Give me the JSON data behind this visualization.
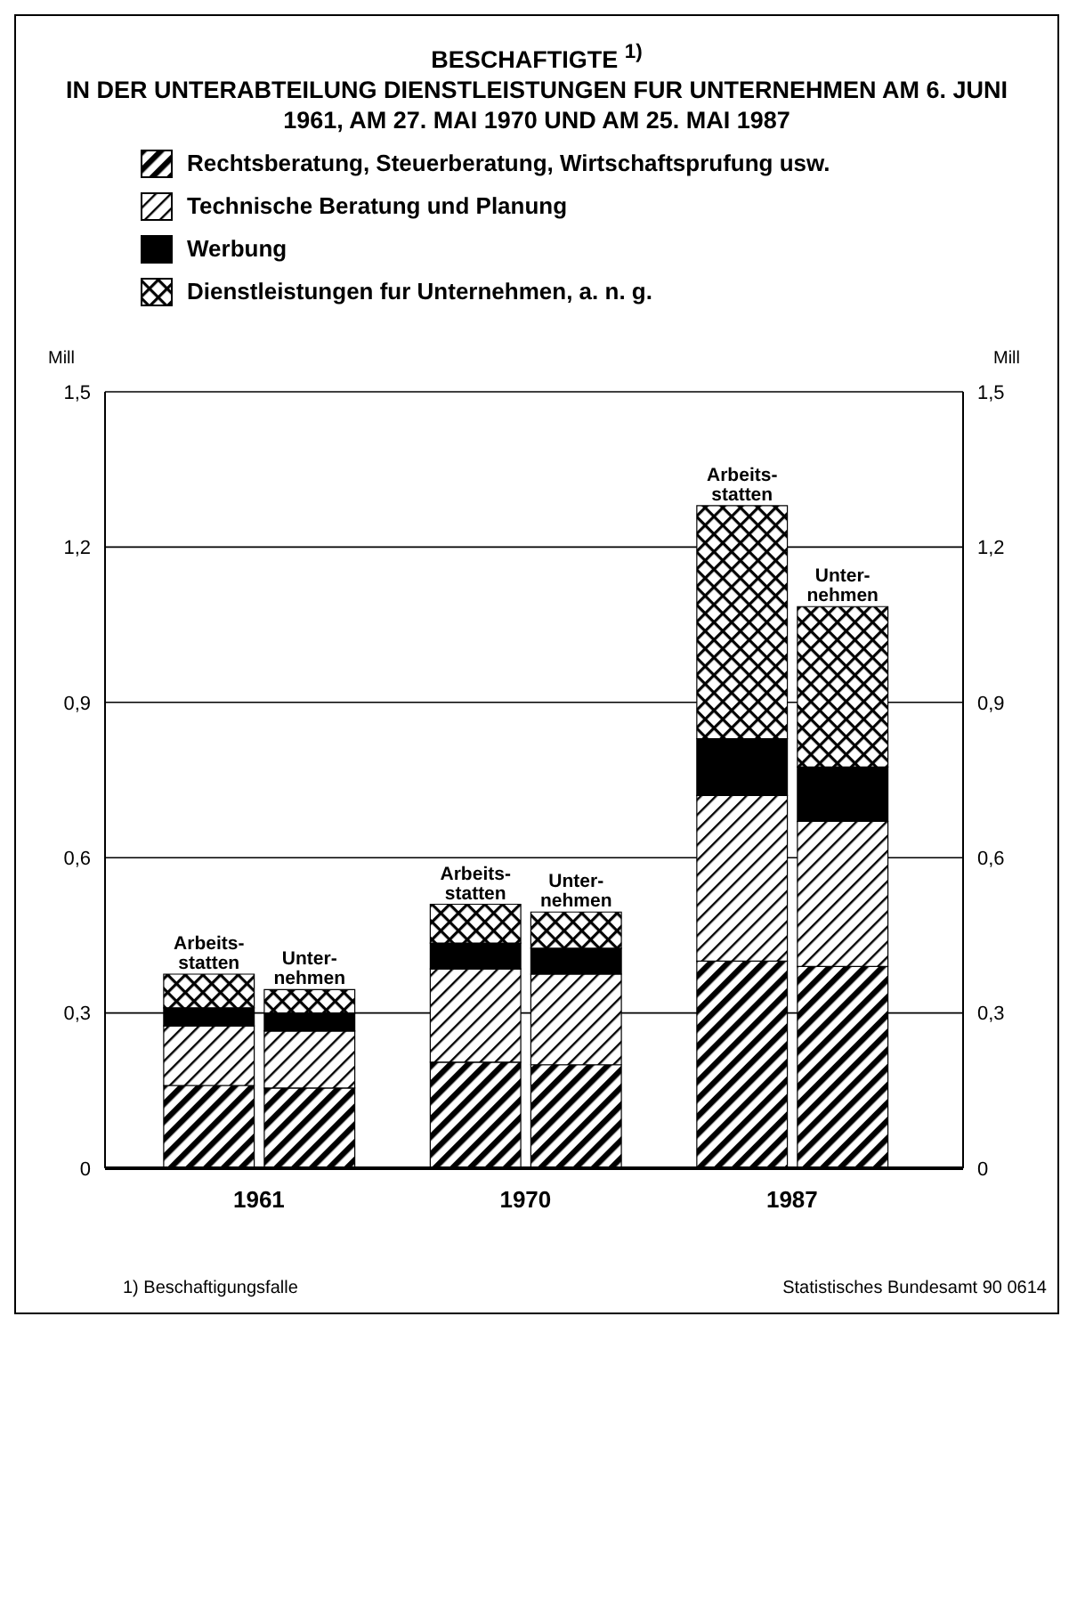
{
  "chart_data": {
    "type": "bar",
    "stacked": true,
    "title": "BESCHAFTIGTE $^{1)}$",
    "subtitle": "IN DER UNTERABTEILUNG DIENSTLEISTUNGEN FUR UNTERNEHMEN AM 6. JUNI 1961, AM 27. MAI 1970 UND AM 25. MAI 1987",
    "ylabel": "Mill",
    "y2label": "Mill",
    "categories": [
      "Arbeits-statten",
      "Unter-nehmen",
      "Arbeits-statten",
      "Unter-nehmen",
      "Arbeits-statten",
      "Unter-nehmen"
    ],
    "series": [
      {
        "name": "Rechtsberatung, Steuerberatung, Wirtschaftsprufung usw.",
        "color": "#000000",
        "values": [
          0.16,
          0.155,
          0.205,
          0.2,
          0.4,
          0.39
        ]
      },
      {
        "name": "Technische Beratung und Planung",
        "color": "#000000",
        "values": [
          0.115,
          0.11,
          0.18,
          0.175,
          0.32,
          0.28
        ]
      },
      {
        "name": "Werbung",
        "color": "#000000",
        "values": [
          0.035,
          0.035,
          0.05,
          0.05,
          0.11,
          0.105
        ]
      },
      {
        "name": "Dienstleistungen fur Unternehmen, a. n. g.",
        "color": "#000000",
        "values": [
          0.065,
          0.045,
          0.075,
          0.07,
          0.45,
          0.31
        ]
      }
    ],
    "ylim": [
      0,
      1.5
    ],
    "yticks": [
      0,
      {
        "value": 0.3,
        "label": "0,3"
      },
      {
        "value": 0.6,
        "label": "0,6"
      },
      {
        "value": 0.9,
        "label": "0,9"
      },
      {
        "value": 1.2,
        "label": "1,2"
      },
      {
        "value": 1.5,
        "label": "1,5"
      }
    ],
    "y2lim": [
      0,
      1.5
    ],
    "y2ticks": [
      0,
      {
        "value": 0.3,
        "label": "0,3"
      },
      {
        "value": 0.6,
        "label": "0,6"
      },
      {
        "value": 0.9,
        "label": "0,9"
      },
      {
        "value": 1.2,
        "label": "1,2"
      },
      {
        "value": 1.5,
        "label": "1,5"
      }
    ],
    "grid": "y",
    "legend": "top left",
    "annotations": [
      "1961",
      "1970",
      "1987",
      "1) Beschaftigungsfalle",
      "Statistisches Bundesamt 90 0614"
    ]
  }
}
